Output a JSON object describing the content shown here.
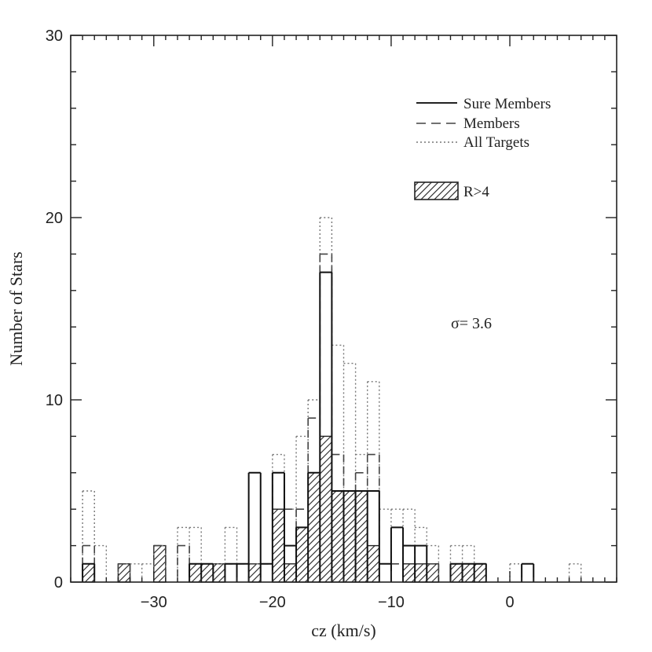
{
  "chart_data": {
    "type": "histogram",
    "xlabel": "cz (km/s)",
    "ylabel": "Number of Stars",
    "xlim": [
      -37,
      9
    ],
    "ylim": [
      0,
      30
    ],
    "bin_width": 1,
    "bin_starts": [
      -36,
      -35,
      -34,
      -33,
      -32,
      -31,
      -30,
      -29,
      -28,
      -27,
      -26,
      -25,
      -24,
      -23,
      -22,
      -21,
      -20,
      -19,
      -18,
      -17,
      -16,
      -15,
      -14,
      -13,
      -12,
      -11,
      -10,
      -9,
      -8,
      -7,
      -6,
      -5,
      -4,
      -3,
      -2,
      -1,
      0,
      1,
      2,
      3,
      4,
      5,
      6,
      7
    ],
    "x_ticks": [
      -30,
      -20,
      -10,
      0
    ],
    "x_tick_labels": [
      "−30",
      "−20",
      "−10",
      "0"
    ],
    "y_ticks": [
      0,
      10,
      20,
      30
    ],
    "y_tick_labels": [
      "0",
      "10",
      "20",
      "30"
    ],
    "series": [
      {
        "name": "All Targets",
        "style": "dotted",
        "values": [
          5,
          2,
          0,
          1,
          1,
          1,
          2,
          0,
          3,
          3,
          1,
          1,
          3,
          1,
          1,
          1,
          7,
          4,
          8,
          10,
          20,
          13,
          12,
          7,
          11,
          4,
          4,
          4,
          3,
          2,
          0,
          2,
          2,
          1,
          0,
          0,
          1,
          0,
          0,
          0,
          0,
          1,
          0,
          0
        ]
      },
      {
        "name": "Members",
        "style": "dashed",
        "values": [
          2,
          0,
          0,
          1,
          0,
          0,
          2,
          0,
          2,
          1,
          1,
          0,
          1,
          1,
          1,
          1,
          6,
          4,
          4,
          9,
          18,
          7,
          5,
          6,
          7,
          0,
          1,
          2,
          1,
          1,
          0,
          1,
          1,
          1,
          0,
          0,
          0,
          0,
          0,
          0,
          0,
          0,
          0,
          0
        ]
      },
      {
        "name": "Sure Members",
        "style": "solid",
        "values": [
          1,
          0,
          0,
          0,
          0,
          0,
          0,
          0,
          0,
          1,
          1,
          0,
          1,
          1,
          6,
          1,
          6,
          2,
          3,
          6,
          17,
          5,
          5,
          5,
          5,
          1,
          3,
          2,
          2,
          0,
          0,
          1,
          1,
          1,
          0,
          0,
          0,
          1,
          0,
          0,
          0,
          0,
          0,
          0
        ]
      },
      {
        "name": "R>4",
        "style": "hatched",
        "values": [
          1,
          0,
          0,
          1,
          0,
          0,
          2,
          0,
          0,
          1,
          1,
          1,
          0,
          0,
          1,
          0,
          4,
          1,
          3,
          6,
          8,
          5,
          5,
          5,
          2,
          0,
          0,
          1,
          1,
          1,
          0,
          1,
          1,
          1,
          0,
          0,
          0,
          0,
          0,
          0,
          0,
          0,
          0,
          0
        ]
      }
    ],
    "annotation": "σ=  3.6"
  }
}
